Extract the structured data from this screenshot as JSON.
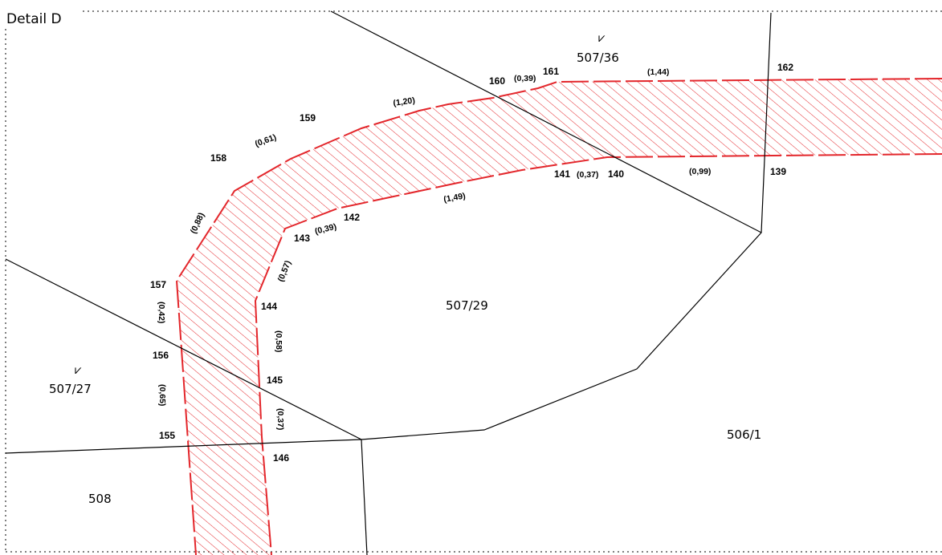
{
  "title": "Detail D",
  "colors": {
    "easement": "#e3262b",
    "boundary": "#000000",
    "frame": "#000000"
  },
  "parcels": {
    "p507_36": "507/36",
    "p507_29": "507/29",
    "p507_27": "507/27",
    "p506_1": "506/1",
    "p508": "508"
  },
  "parcel_symbol": "⩗",
  "points": {
    "p139": "139",
    "p140": "140",
    "p141": "141",
    "p142": "142",
    "p143": "143",
    "p144": "144",
    "p145": "145",
    "p146": "146",
    "p155": "155",
    "p156": "156",
    "p157": "157",
    "p158": "158",
    "p159": "159",
    "p160": "160",
    "p161": "161",
    "p162": "162"
  },
  "measures": {
    "m160_161": "(0,39)",
    "m161_162": "(1,44)",
    "m159_160": "(1,20)",
    "m158_159": "(0,61)",
    "m157_158": "(0,88)",
    "m140_141": "(0,37)",
    "m139_140": "(0,99)",
    "m141_142": "(1,49)",
    "m142_143": "(0,39)",
    "m143_144": "(0,57)",
    "m156_157": "(0,42)",
    "m144_145": "(0,58)",
    "m155_156": "(0,65)",
    "m145_146": "(0,37)"
  }
}
